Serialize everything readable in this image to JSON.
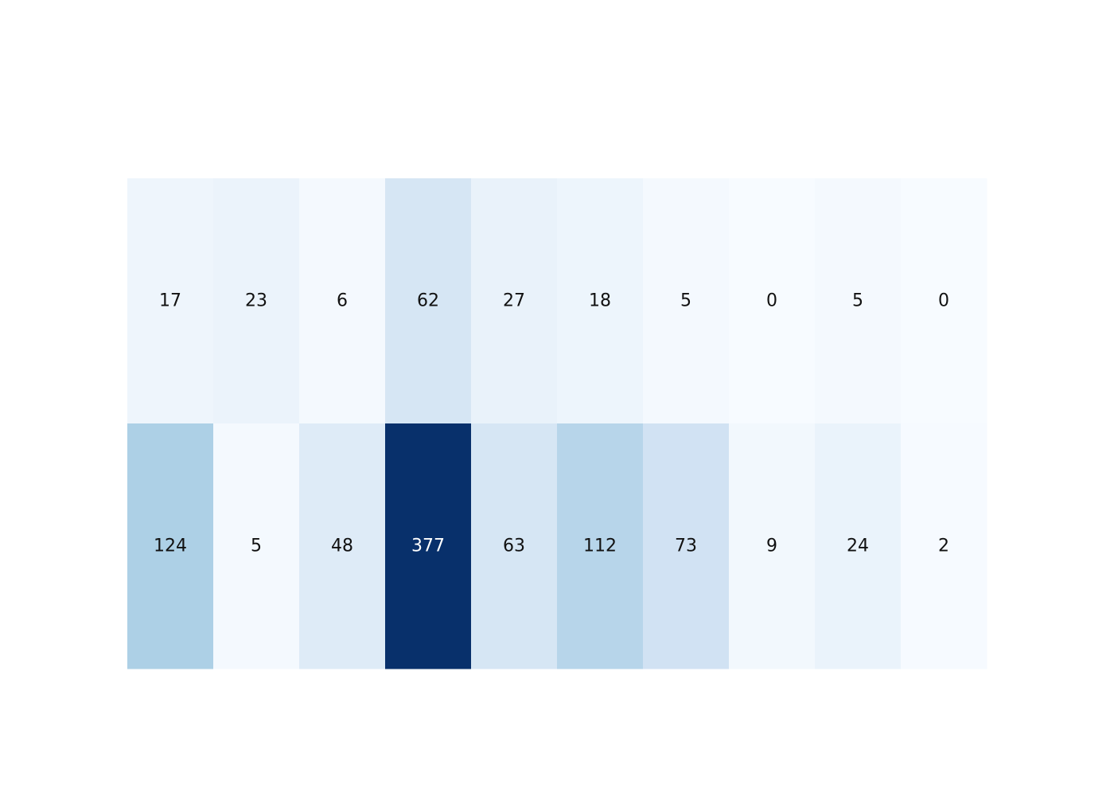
{
  "chart_data": {
    "type": "heatmap",
    "title": "",
    "xlabel": "",
    "ylabel": "",
    "rows": 2,
    "columns": 10,
    "values": [
      [
        17,
        23,
        6,
        62,
        27,
        18,
        5,
        0,
        5,
        0
      ],
      [
        124,
        5,
        48,
        377,
        63,
        112,
        73,
        9,
        24,
        2
      ]
    ],
    "zlim": [
      0,
      377
    ],
    "colorscale": "Blues",
    "grid": false,
    "legend": "none"
  }
}
